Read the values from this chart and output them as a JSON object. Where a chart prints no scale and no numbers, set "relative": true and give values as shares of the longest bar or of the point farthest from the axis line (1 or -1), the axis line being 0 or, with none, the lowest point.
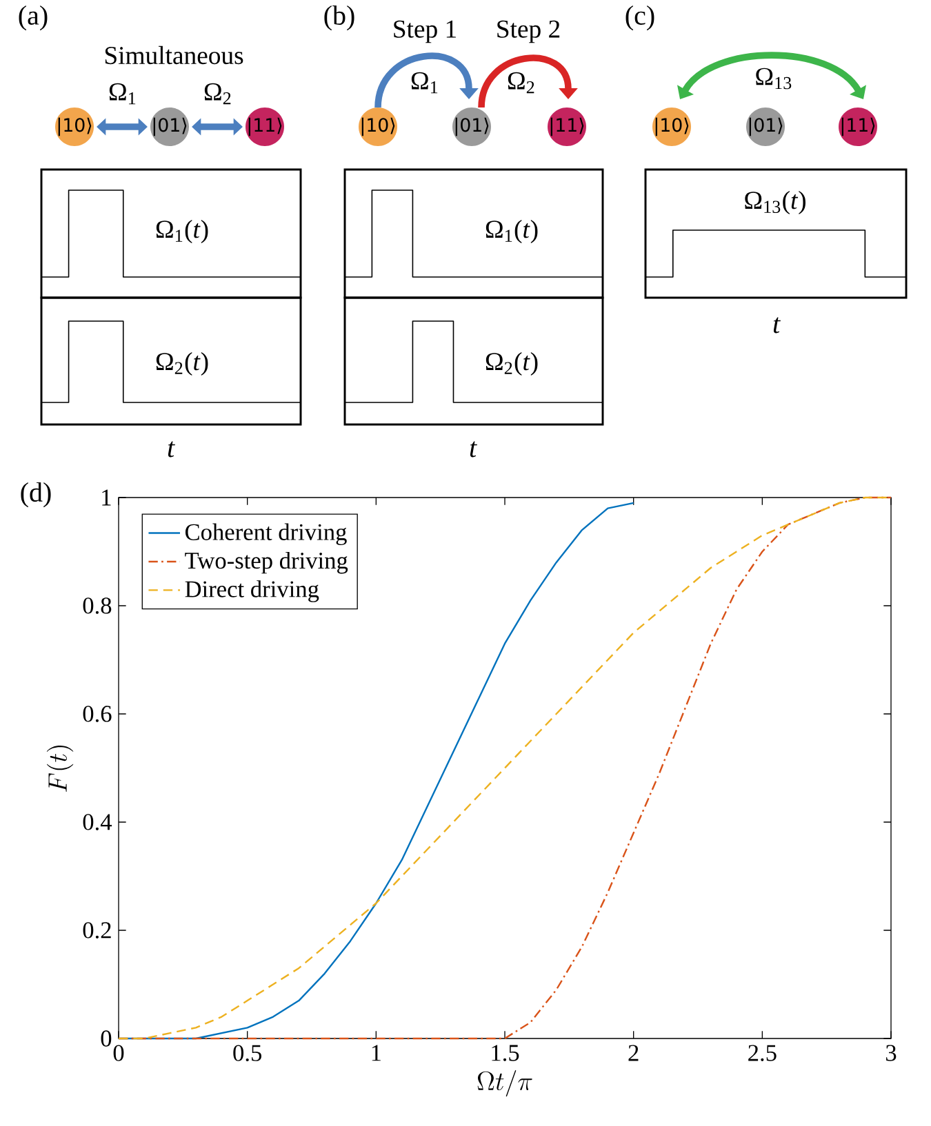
{
  "chart_data": [
    {
      "type": "step",
      "title": "(a)",
      "relative": true,
      "color": "#000000",
      "categories": [
        null,
        null,
        null,
        null,
        null,
        null,
        null,
        null,
        null,
        null,
        null,
        null,
        null,
        null,
        null,
        null,
        null,
        null,
        null,
        null
      ],
      "values": [
        0,
        0,
        1,
        1,
        1,
        1,
        0,
        0,
        0,
        0,
        0,
        0,
        0,
        0,
        0,
        0,
        0,
        0,
        0,
        0
      ],
      "annotations": [
        "Simultaneous",
        "Ω$_{1}$",
        "Ω$_{2}$",
        "|10⟩",
        "|01⟩",
        "|11⟩",
        "Ω$_{1}$(*t*)"
      ]
    },
    {
      "type": "step",
      "relative": true,
      "color": "#000000",
      "xlabel": "*t*",
      "categories": [
        null,
        null,
        null,
        null,
        null,
        null,
        null,
        null,
        null,
        null,
        null,
        null,
        null,
        null,
        null,
        null,
        null,
        null,
        null,
        null
      ],
      "values": [
        0,
        0,
        1,
        1,
        1,
        1,
        0,
        0,
        0,
        0,
        0,
        0,
        0,
        0,
        0,
        0,
        0,
        0,
        0,
        0
      ],
      "annotations": [
        "Ω$_{2}$(*t*)"
      ]
    },
    {
      "type": "step",
      "title": "(b)",
      "relative": true,
      "color": "#000000",
      "categories": [
        null,
        null,
        null,
        null,
        null,
        null,
        null,
        null,
        null,
        null,
        null,
        null,
        null,
        null,
        null,
        null,
        null,
        null,
        null,
        null
      ],
      "values": [
        0,
        0,
        1,
        1,
        1,
        0,
        0,
        0,
        0,
        0,
        0,
        0,
        0,
        0,
        0,
        0,
        0,
        0,
        0,
        0
      ],
      "annotations": [
        "Step 1",
        "Step 2",
        "Ω$_{1}$",
        "Ω$_{2}$",
        "|10⟩",
        "|01⟩",
        "|11⟩",
        "Ω$_{1}$(*t*)"
      ]
    },
    {
      "type": "step",
      "relative": true,
      "color": "#000000",
      "xlabel": "*t*",
      "categories": [
        null,
        null,
        null,
        null,
        null,
        null,
        null,
        null,
        null,
        null,
        null,
        null,
        null,
        null,
        null,
        null,
        null,
        null,
        null,
        null
      ],
      "values": [
        0,
        0,
        0,
        0,
        0,
        1,
        1,
        1,
        0,
        0,
        0,
        0,
        0,
        0,
        0,
        0,
        0,
        0,
        0,
        0
      ],
      "annotations": [
        "Ω$_{2}$(*t*)"
      ]
    },
    {
      "type": "step",
      "title": "(c)",
      "relative": true,
      "color": "#000000",
      "xlabel": "*t*",
      "categories": [
        null,
        null,
        null,
        null,
        null,
        null,
        null,
        null,
        null,
        null,
        null,
        null,
        null,
        null,
        null,
        null,
        null,
        null,
        null,
        null
      ],
      "values": [
        0,
        0,
        1,
        1,
        1,
        1,
        1,
        1,
        1,
        1,
        1,
        1,
        1,
        1,
        1,
        1,
        0,
        0,
        0,
        0
      ],
      "annotations": [
        "Ω$_{13}$",
        "|10⟩",
        "|01⟩",
        "|11⟩",
        "Ω$_{13}$(*t*)"
      ]
    },
    {
      "type": "line",
      "title": "(d)",
      "xlabel": "\\Omega t/\\pi",
      "ylabel": "F(t)",
      "xlim": [
        0,
        3
      ],
      "ylim": [
        0,
        1
      ],
      "xticks": [
        0,
        0.5,
        1,
        1.5,
        2,
        2.5,
        3
      ],
      "yticks": [
        0,
        0.2,
        0.4,
        0.6,
        0.8,
        1
      ],
      "legend": "top left",
      "series": [
        {
          "name": "Coherent driving",
          "color": "#0072bd",
          "line_style": "solid",
          "x": [
            0,
            0.1,
            0.2,
            0.3,
            0.4,
            0.5,
            0.6,
            0.7,
            0.8,
            0.9,
            1,
            1.1,
            1.2,
            1.3,
            1.4,
            1.5,
            1.6,
            1.7,
            1.8,
            1.9,
            2
          ],
          "values": [
            0,
            0,
            0,
            0,
            0.01,
            0.02,
            0.04,
            0.07,
            0.12,
            0.18,
            0.25,
            0.33,
            0.43,
            0.53,
            0.63,
            0.73,
            0.81,
            0.88,
            0.94,
            0.98,
            0.99
          ]
        },
        {
          "name": "Two-step driving",
          "color": "#d95319",
          "line_style": "dashdot",
          "x": [
            0,
            0.1,
            0.2,
            0.3,
            0.4,
            0.5,
            0.6,
            0.7,
            0.8,
            0.9,
            1,
            1.1,
            1.2,
            1.3,
            1.4,
            1.5,
            1.6,
            1.7,
            1.8,
            1.9,
            2,
            2.1,
            2.2,
            2.3,
            2.4,
            2.5,
            2.6,
            2.7,
            2.8,
            2.9,
            3
          ],
          "values": [
            0,
            0,
            0,
            0,
            0,
            0,
            0,
            0,
            0,
            0,
            0,
            0,
            0,
            0,
            0,
            0,
            0.03,
            0.09,
            0.17,
            0.27,
            0.38,
            0.49,
            0.61,
            0.73,
            0.83,
            0.9,
            0.95,
            0.97,
            0.99,
            1,
            1
          ]
        },
        {
          "name": "Direct driving",
          "color": "#edb120",
          "line_style": "dashed",
          "x": [
            0,
            0.1,
            0.2,
            0.3,
            0.4,
            0.5,
            0.6,
            0.7,
            0.8,
            0.9,
            1,
            1.1,
            1.2,
            1.3,
            1.4,
            1.5,
            1.6,
            1.7,
            1.8,
            1.9,
            2,
            2.1,
            2.2,
            2.3,
            2.4,
            2.5,
            2.6,
            2.7,
            2.8,
            2.9,
            3
          ],
          "values": [
            0,
            0,
            0.01,
            0.02,
            0.04,
            0.07,
            0.1,
            0.13,
            0.17,
            0.21,
            0.25,
            0.3,
            0.35,
            0.4,
            0.45,
            0.5,
            0.55,
            0.6,
            0.65,
            0.7,
            0.75,
            0.79,
            0.83,
            0.87,
            0.9,
            0.93,
            0.95,
            0.97,
            0.99,
            1,
            1
          ]
        }
      ]
    }
  ]
}
